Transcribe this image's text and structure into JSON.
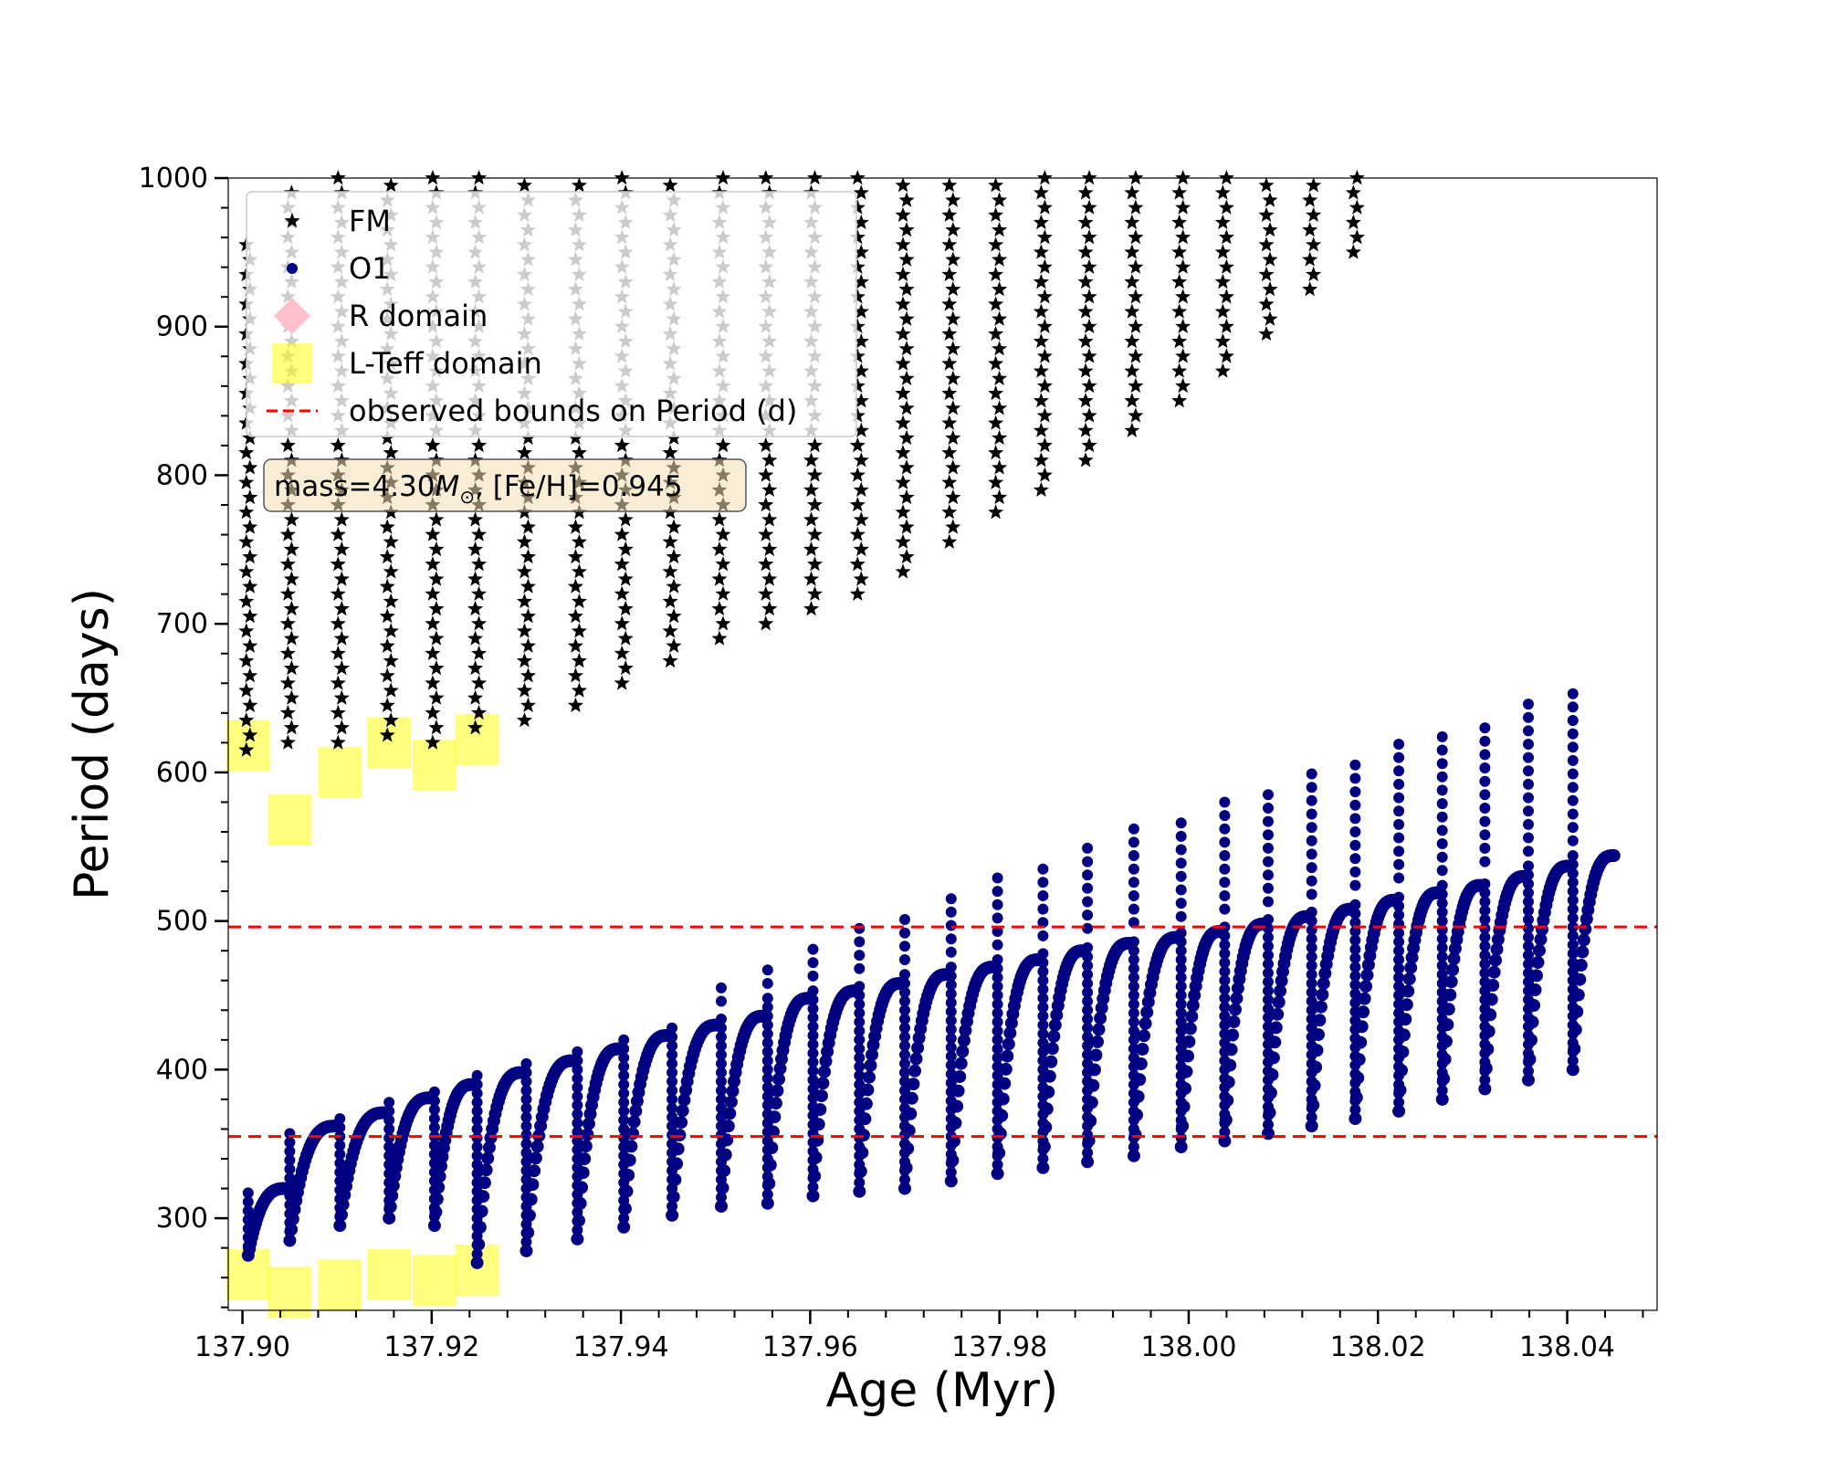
{
  "chart_data": {
    "type": "scatter",
    "title": "",
    "xlabel": "Age (Myr)",
    "ylabel": "Period (days)",
    "xlim": [
      137.8985,
      138.0495
    ],
    "ylim": [
      238,
      1000
    ],
    "xticks": [
      137.9,
      137.92,
      137.94,
      137.96,
      137.98,
      138.0,
      138.02,
      138.04
    ],
    "xtick_labels": [
      "137.90",
      "137.92",
      "137.94",
      "137.96",
      "137.98",
      "138.00",
      "138.02",
      "138.04"
    ],
    "yticks": [
      300,
      400,
      500,
      600,
      700,
      800,
      900,
      1000
    ],
    "ytick_labels": [
      "300",
      "400",
      "500",
      "600",
      "700",
      "800",
      "900",
      "1000"
    ],
    "grid": false,
    "legend_position": "top-left",
    "annotation": {
      "prefix": "mass=4.30",
      "symbol": "M",
      "subscript": "⊙",
      "suffix": ", [Fe/H]=0.945"
    },
    "legend": [
      {
        "label": "FM",
        "marker": "star",
        "color": "#000000"
      },
      {
        "label": "O1",
        "marker": "circle",
        "color": "#000080"
      },
      {
        "label": "R domain",
        "marker": "diamond",
        "color": "#ffc0cb"
      },
      {
        "label": "L-Teff domain",
        "marker": "square",
        "color": "#ffff00"
      },
      {
        "label": "observed bounds on Period (d)",
        "marker": "dashed-line",
        "color": "#ff0000"
      }
    ],
    "observed_bounds": [
      355,
      496
    ],
    "series": [
      {
        "name": "O1",
        "color": "#000080",
        "pulse_ages": [
          137.9006,
          137.905,
          137.9103,
          137.9155,
          137.9203,
          137.9248,
          137.93,
          137.9354,
          137.9403,
          137.9454,
          137.9506,
          137.9555,
          137.9603,
          137.9652,
          137.97,
          137.9749,
          137.9798,
          137.9846,
          137.9893,
          137.9942,
          137.9992,
          138.0038,
          138.0084,
          138.013,
          138.0176,
          138.0222,
          138.0268,
          138.0313,
          138.0359,
          138.0406
        ],
        "bottom_periods": [
          275,
          285,
          295,
          300,
          295,
          270,
          278,
          286,
          294,
          302,
          308,
          310,
          315,
          318,
          320,
          325,
          330,
          334,
          338,
          342,
          348,
          352,
          357,
          362,
          367,
          372,
          380,
          387,
          393,
          400
        ],
        "top_periods": [
          320,
          362,
          371,
          381,
          390,
          398,
          406,
          414,
          423,
          430,
          436,
          448,
          453,
          458,
          464,
          469,
          474,
          480,
          485,
          489,
          493,
          498,
          503,
          508,
          514,
          519,
          524,
          530,
          537,
          544
        ],
        "spike_periods": [
          320,
          360,
          370,
          380,
          390,
          398,
          407,
          415,
          424,
          439,
          455,
          470,
          484,
          496,
          508,
          520,
          532,
          543,
          553,
          563,
          573,
          583,
          592,
          601,
          610,
          619,
          628,
          637,
          646,
          655
        ]
      },
      {
        "name": "FM",
        "color": "#000000",
        "pulse_ages": [
          137.9006,
          137.905,
          137.9103,
          137.9155,
          137.9203,
          137.9248,
          137.93,
          137.9354,
          137.9403,
          137.9454,
          137.9506,
          137.9555,
          137.9603,
          137.9652,
          137.97,
          137.9749,
          137.9798,
          137.9846,
          137.9893,
          137.9942,
          137.9992,
          138.0038,
          138.0084,
          138.013,
          138.0176
        ],
        "bottom_periods": [
          615,
          620,
          620,
          625,
          620,
          630,
          635,
          645,
          660,
          675,
          690,
          700,
          710,
          720,
          735,
          755,
          775,
          790,
          810,
          830,
          850,
          870,
          895,
          925,
          950
        ],
        "top_periods": [
          960,
          995,
          1000,
          1000,
          1000,
          1000,
          1000,
          1000,
          1000,
          1000,
          1000,
          1000,
          1000,
          1000,
          1000,
          1000,
          1000,
          1000,
          1000,
          1000,
          1000,
          1000,
          1000,
          1000,
          1000
        ]
      }
    ],
    "lteff_domain_upper": [
      {
        "x": 137.9006,
        "y": 618
      },
      {
        "x": 137.905,
        "y": 568
      },
      {
        "x": 137.9103,
        "y": 600
      },
      {
        "x": 137.9155,
        "y": 620
      },
      {
        "x": 137.9203,
        "y": 605
      },
      {
        "x": 137.9248,
        "y": 622
      }
    ],
    "lteff_domain_lower": [
      {
        "x": 137.9006,
        "y": 262
      },
      {
        "x": 137.905,
        "y": 250
      },
      {
        "x": 137.9103,
        "y": 255
      },
      {
        "x": 137.9155,
        "y": 262
      },
      {
        "x": 137.9203,
        "y": 258
      },
      {
        "x": 137.9248,
        "y": 265
      }
    ]
  }
}
